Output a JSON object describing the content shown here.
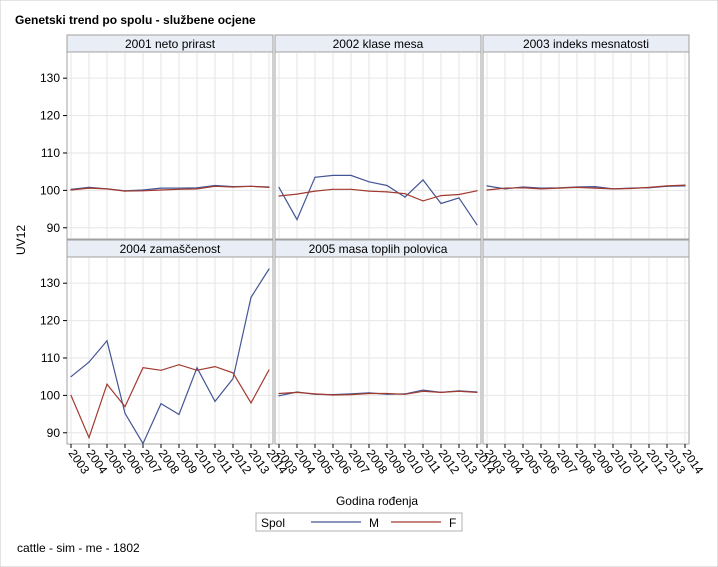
{
  "chart_data": {
    "type": "line",
    "title": "Genetski trend po spolu - službene ocjene",
    "xlabel": "Godina rođenja",
    "ylabel": "UV12",
    "x": [
      2003,
      2004,
      2005,
      2006,
      2007,
      2008,
      2009,
      2010,
      2011,
      2012,
      2013,
      2014
    ],
    "x_tick_labels": [
      "2003",
      "2004",
      "2005",
      "2006",
      "2007",
      "2008",
      "2009",
      "2010",
      "2011",
      "2012",
      "2013",
      "2014"
    ],
    "ylim": [
      87,
      137
    ],
    "y_ticks": [
      90,
      100,
      110,
      120,
      130
    ],
    "grid": true,
    "legend": {
      "title": "Spol",
      "placement": "bottom",
      "entries": [
        {
          "name": "M",
          "color": "#445694"
        },
        {
          "name": "F",
          "color": "#A23A2E"
        }
      ]
    },
    "panels": [
      {
        "label": "2001 neto prirast",
        "series": [
          {
            "name": "M",
            "values": [
              100.3,
              100.8,
              100.4,
              99.9,
              100.1,
              100.6,
              100.6,
              100.7,
              101.3,
              101.0,
              101.1,
              100.9
            ]
          },
          {
            "name": "F",
            "values": [
              100.1,
              100.6,
              100.4,
              99.8,
              99.9,
              100.1,
              100.3,
              100.4,
              101.1,
              100.9,
              101.1,
              100.8
            ]
          }
        ]
      },
      {
        "label": "2002 klase mesa",
        "series": [
          {
            "name": "M",
            "values": [
              100.8,
              92.2,
              103.5,
              104.0,
              104.0,
              102.3,
              101.3,
              98.2,
              102.8,
              96.5,
              98.0,
              90.8
            ]
          },
          {
            "name": "F",
            "values": [
              98.5,
              99.0,
              99.8,
              100.3,
              100.3,
              99.8,
              99.6,
              99.1,
              97.2,
              98.6,
              98.9,
              99.9
            ]
          }
        ]
      },
      {
        "label": "2003 indeks mesnatosti",
        "series": [
          {
            "name": "M",
            "values": [
              101.2,
              100.4,
              100.9,
              100.6,
              100.7,
              100.9,
              101.0,
              100.4,
              100.6,
              100.7,
              101.1,
              101.2
            ]
          },
          {
            "name": "F",
            "values": [
              100.1,
              100.6,
              100.7,
              100.4,
              100.6,
              100.8,
              100.6,
              100.4,
              100.5,
              100.8,
              101.2,
              101.4
            ]
          }
        ]
      },
      {
        "label": "2004 zamaščenost",
        "series": [
          {
            "name": "M",
            "values": [
              105.0,
              108.9,
              114.6,
              95.2,
              87.1,
              97.8,
              94.9,
              107.4,
              98.4,
              104.5,
              126.2,
              133.8
            ]
          },
          {
            "name": "F",
            "values": [
              100.0,
              88.7,
              103.0,
              97.0,
              107.4,
              106.7,
              108.2,
              106.7,
              107.7,
              106.0,
              98.0,
              106.8
            ]
          }
        ]
      },
      {
        "label": "2005 masa toplih polovica",
        "series": [
          {
            "name": "M",
            "values": [
              99.9,
              100.9,
              100.3,
              100.2,
              100.4,
              100.7,
              100.3,
              100.4,
              101.4,
              100.8,
              101.2,
              100.9
            ]
          },
          {
            "name": "F",
            "values": [
              100.5,
              100.8,
              100.4,
              100.1,
              100.2,
              100.5,
              100.5,
              100.3,
              101.1,
              100.8,
              101.1,
              100.8
            ]
          }
        ]
      }
    ]
  },
  "footnote": "cattle - sim - me - 1802",
  "colors": {
    "M": "#445694",
    "F": "#A23A2E",
    "grid": "#e6e6e6",
    "strip_bg": "#e9edf5",
    "border": "#a0a0a0"
  }
}
